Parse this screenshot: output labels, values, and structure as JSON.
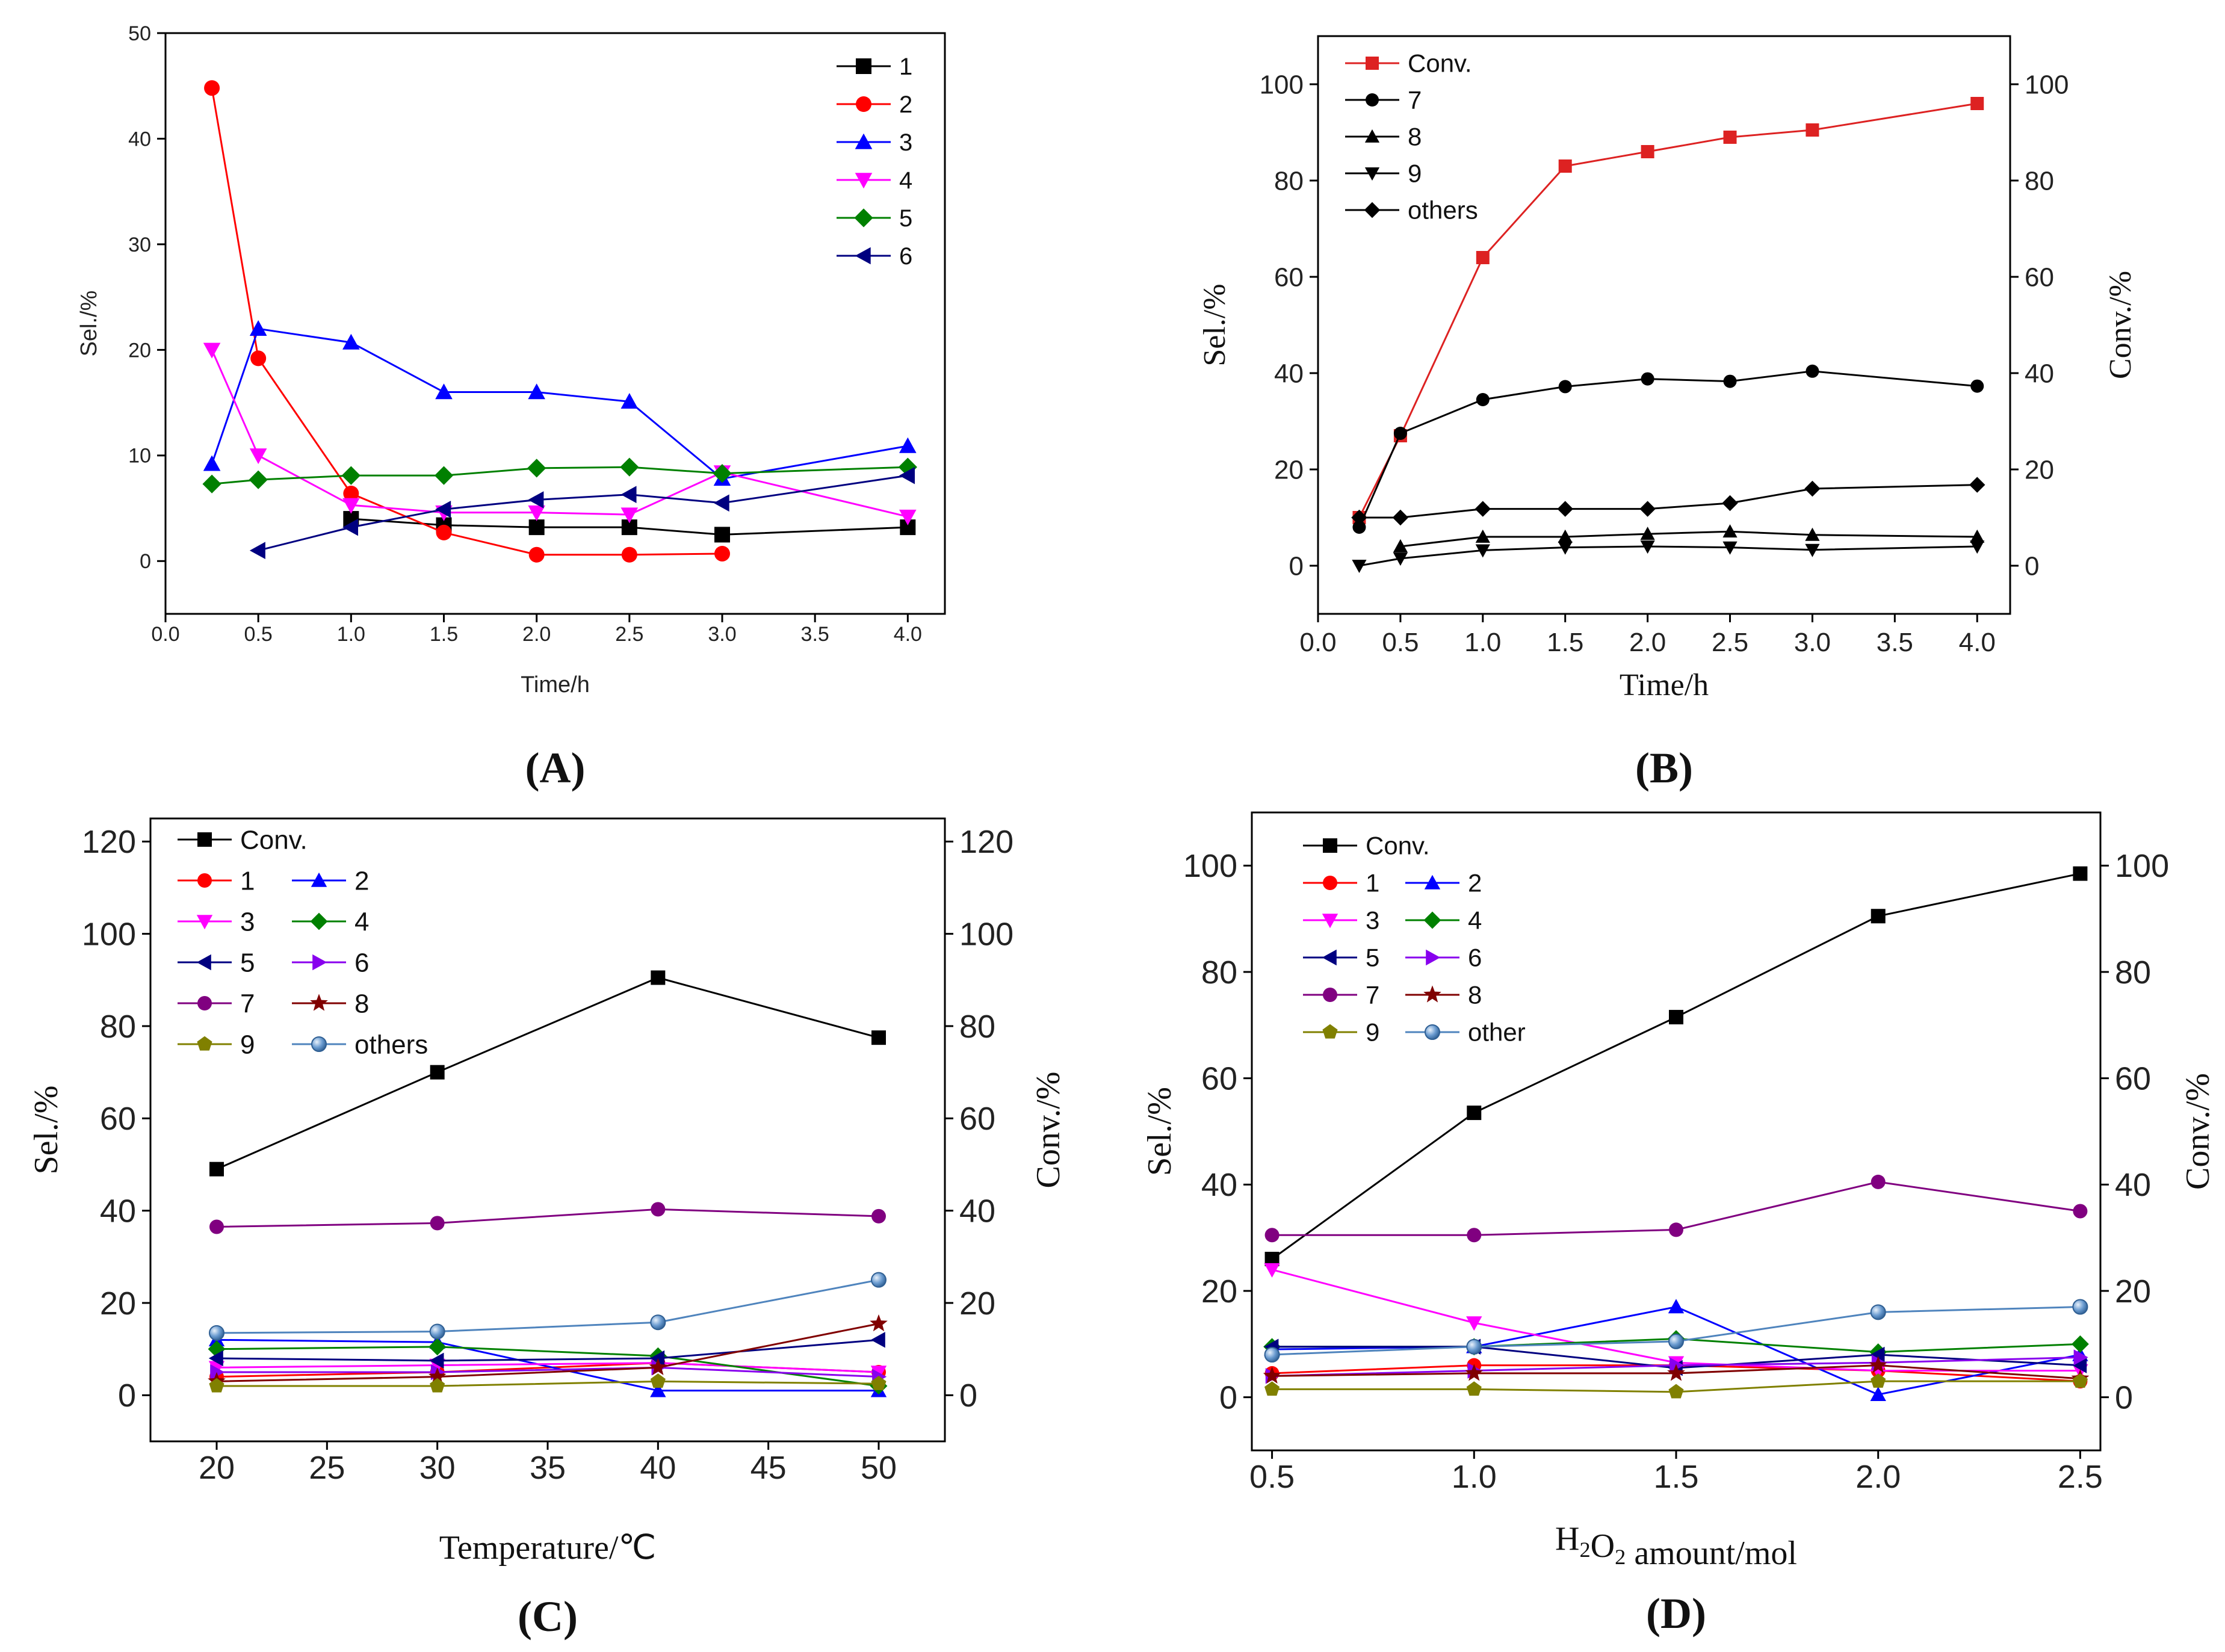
{
  "chart_data": [
    {
      "panel": "A",
      "panel_label": "(A)",
      "type": "line",
      "xlabel": "Time/h",
      "ylabel": "Sel./%",
      "xlim": [
        0,
        4.2
      ],
      "ylim": [
        -5,
        50
      ],
      "x_ticks": [
        "0.0",
        "0.5",
        "1.0",
        "1.5",
        "2.0",
        "2.5",
        "3.0",
        "3.5",
        "4.0"
      ],
      "y_ticks": [
        "0",
        "10",
        "20",
        "30",
        "40",
        "50"
      ],
      "legend_position": "top-right",
      "series": [
        {
          "name": "1",
          "color": "#000000",
          "marker": "square",
          "x": [
            1.0,
            1.5,
            2.0,
            2.5,
            3.0,
            4.0
          ],
          "values": [
            4.0,
            3.4,
            3.2,
            3.2,
            2.5,
            3.2
          ]
        },
        {
          "name": "2",
          "color": "#ff0000",
          "marker": "circle",
          "x": [
            0.25,
            0.5,
            1.0,
            1.5,
            2.0,
            2.5,
            3.0
          ],
          "values": [
            44.8,
            19.2,
            6.4,
            2.7,
            0.6,
            0.6,
            0.7
          ]
        },
        {
          "name": "3",
          "color": "#0000ff",
          "marker": "triangle-up",
          "x": [
            0.25,
            0.5,
            1.0,
            1.5,
            2.0,
            2.5,
            3.0,
            4.0
          ],
          "values": [
            9.2,
            22.0,
            20.7,
            16.0,
            16.0,
            15.1,
            7.8,
            10.9
          ]
        },
        {
          "name": "4",
          "color": "#ff00ff",
          "marker": "triangle-down",
          "x": [
            0.25,
            0.5,
            1.0,
            1.5,
            2.0,
            2.5,
            3.0,
            4.0
          ],
          "values": [
            20.0,
            10.0,
            5.3,
            4.6,
            4.6,
            4.4,
            8.4,
            4.2
          ]
        },
        {
          "name": "5",
          "color": "#008000",
          "marker": "diamond",
          "x": [
            0.25,
            0.5,
            1.0,
            1.5,
            2.0,
            2.5,
            3.0,
            4.0
          ],
          "values": [
            7.3,
            7.7,
            8.1,
            8.1,
            8.8,
            8.9,
            8.3,
            8.9
          ]
        },
        {
          "name": "6",
          "color": "#000080",
          "marker": "triangle-left",
          "x": [
            0.5,
            1.0,
            1.5,
            2.0,
            2.5,
            3.0,
            4.0
          ],
          "values": [
            1.0,
            3.2,
            4.9,
            5.8,
            6.3,
            5.5,
            8.1
          ]
        }
      ]
    },
    {
      "panel": "B",
      "panel_label": "(B)",
      "type": "line",
      "xlabel": "Time/h",
      "ylabel": "Sel./%",
      "y2label": "Conv./%",
      "xlim": [
        0,
        4.2
      ],
      "ylim": [
        -10,
        110
      ],
      "y2lim": [
        -10,
        110
      ],
      "x_ticks": [
        "0.0",
        "0.5",
        "1.0",
        "1.5",
        "2.0",
        "2.5",
        "3.0",
        "3.5",
        "4.0"
      ],
      "y_ticks": [
        "0",
        "20",
        "40",
        "60",
        "80",
        "100"
      ],
      "y2_ticks": [
        "0",
        "20",
        "40",
        "60",
        "80",
        "100"
      ],
      "legend_position": "top-left",
      "series": [
        {
          "name": "Conv.",
          "axis": "right",
          "color": "#dd2222",
          "marker": "square",
          "x": [
            0.25,
            0.5,
            1.0,
            1.5,
            2.0,
            2.5,
            3.0,
            4.0
          ],
          "values": [
            10,
            27,
            64,
            83,
            86,
            89,
            90.5,
            96
          ]
        },
        {
          "name": "7",
          "color": "#000000",
          "marker": "circle",
          "x": [
            0.25,
            0.5,
            1.0,
            1.5,
            2.0,
            2.5,
            3.0,
            4.0
          ],
          "values": [
            8,
            27.5,
            34.5,
            37.2,
            38.8,
            38.3,
            40.4,
            37.3
          ]
        },
        {
          "name": "8",
          "color": "#000000",
          "marker": "triangle-up",
          "x": [
            0.5,
            1.0,
            1.5,
            2.0,
            2.5,
            3.0,
            4.0
          ],
          "values": [
            4,
            6,
            6,
            6.6,
            7.1,
            6.4,
            6
          ]
        },
        {
          "name": "9",
          "color": "#000000",
          "marker": "triangle-down",
          "x": [
            0.25,
            0.5,
            1.0,
            1.5,
            2.0,
            2.5,
            3.0,
            4.0
          ],
          "values": [
            0,
            1.5,
            3.2,
            3.8,
            4,
            3.8,
            3.3,
            4
          ]
        },
        {
          "name": "others",
          "color": "#000000",
          "marker": "diamond",
          "x": [
            0.25,
            0.5,
            1.0,
            1.5,
            2.0,
            2.5,
            3.0,
            4.0
          ],
          "values": [
            10,
            10,
            11.8,
            11.8,
            11.8,
            13,
            16,
            16.8
          ]
        }
      ]
    },
    {
      "panel": "C",
      "panel_label": "(C)",
      "type": "line",
      "xlabel": "Temperature/℃",
      "ylabel": "Sel./%",
      "y2label": "Conv./%",
      "xlim": [
        17,
        53
      ],
      "ylim": [
        -10,
        125
      ],
      "y2lim": [
        -10,
        125
      ],
      "x_ticks": [
        "20",
        "25",
        "30",
        "35",
        "40",
        "45",
        "50"
      ],
      "y_ticks": [
        "0",
        "20",
        "40",
        "60",
        "80",
        "100",
        "120"
      ],
      "y2_ticks": [
        "0",
        "20",
        "40",
        "60",
        "80",
        "100",
        "120"
      ],
      "legend_position": "top-left",
      "series": [
        {
          "name": "Conv.",
          "axis": "right",
          "color": "#000000",
          "marker": "square",
          "x": [
            20,
            30,
            40,
            50
          ],
          "values": [
            49,
            70,
            90.5,
            77.5
          ]
        },
        {
          "name": "1",
          "color": "#ff0000",
          "marker": "circle",
          "x": [
            20,
            30,
            40,
            50
          ],
          "values": [
            4,
            5,
            7,
            5
          ]
        },
        {
          "name": "2",
          "color": "#0000ff",
          "marker": "triangle-up",
          "x": [
            20,
            30,
            40,
            50
          ],
          "values": [
            12,
            11.5,
            1,
            1
          ]
        },
        {
          "name": "3",
          "color": "#ff00ff",
          "marker": "triangle-down",
          "x": [
            20,
            30,
            40,
            50
          ],
          "values": [
            6,
            6.5,
            7,
            5
          ]
        },
        {
          "name": "4",
          "color": "#008000",
          "marker": "diamond",
          "x": [
            20,
            30,
            40,
            50
          ],
          "values": [
            10,
            10.5,
            8.5,
            2
          ]
        },
        {
          "name": "5",
          "color": "#000080",
          "marker": "triangle-left",
          "x": [
            20,
            30,
            40,
            50
          ],
          "values": [
            8,
            7.5,
            8,
            12
          ]
        },
        {
          "name": "6",
          "color": "#8800ee",
          "marker": "triangle-right",
          "x": [
            20,
            30,
            40,
            50
          ],
          "values": [
            5,
            5,
            6,
            4
          ]
        },
        {
          "name": "7",
          "color": "#800080",
          "marker": "circle",
          "x": [
            20,
            30,
            40,
            50
          ],
          "values": [
            36.5,
            37.3,
            40.3,
            38.8
          ]
        },
        {
          "name": "8",
          "color": "#800000",
          "marker": "star",
          "x": [
            20,
            30,
            40,
            50
          ],
          "values": [
            3,
            4,
            6,
            15.5
          ]
        },
        {
          "name": "9",
          "color": "#808000",
          "marker": "pentagon",
          "x": [
            20,
            30,
            40,
            50
          ],
          "values": [
            2,
            2,
            3,
            2.5
          ]
        },
        {
          "name": "others",
          "color": "#4f84bd",
          "marker": "sphere",
          "x": [
            20,
            30,
            40,
            50
          ],
          "values": [
            13.5,
            13.8,
            15.8,
            25
          ]
        }
      ]
    },
    {
      "panel": "D",
      "panel_label": "(D)",
      "type": "line",
      "xlabel_main": "H",
      "xlabel_sub1": "2",
      "xlabel_mid": "O",
      "xlabel_sub2": "2",
      "xlabel_tail": " amount/mol",
      "ylabel": "Sel./%",
      "y2label": "Conv./%",
      "xlim": [
        0.45,
        2.55
      ],
      "ylim": [
        -10,
        110
      ],
      "y2lim": [
        -10,
        110
      ],
      "x_ticks": [
        "0.5",
        "1.0",
        "1.5",
        "2.0",
        "2.5"
      ],
      "y_ticks": [
        "0",
        "20",
        "40",
        "60",
        "80",
        "100"
      ],
      "y2_ticks": [
        "0",
        "20",
        "40",
        "60",
        "80",
        "100"
      ],
      "legend_position": "top-left",
      "series": [
        {
          "name": "Conv.",
          "axis": "right",
          "color": "#000000",
          "marker": "square",
          "x": [
            0.5,
            1.0,
            1.5,
            2.0,
            2.5
          ],
          "values": [
            26,
            53.5,
            71.5,
            90.5,
            98.5
          ]
        },
        {
          "name": "1",
          "color": "#ff0000",
          "marker": "circle",
          "x": [
            0.5,
            1.0,
            1.5,
            2.0,
            2.5
          ],
          "values": [
            4.5,
            6,
            6,
            5,
            3
          ]
        },
        {
          "name": "2",
          "color": "#0000ff",
          "marker": "triangle-up",
          "x": [
            0.5,
            1.0,
            1.5,
            2.0,
            2.5
          ],
          "values": [
            9,
            9.5,
            17,
            0.5,
            8
          ]
        },
        {
          "name": "3",
          "color": "#ff00ff",
          "marker": "triangle-down",
          "x": [
            0.5,
            1.0,
            1.5,
            2.0,
            2.5
          ],
          "values": [
            24,
            14,
            6.5,
            5,
            5
          ]
        },
        {
          "name": "4",
          "color": "#008000",
          "marker": "diamond",
          "x": [
            0.5,
            1.0,
            1.5,
            2.0,
            2.5
          ],
          "values": [
            9.5,
            9.5,
            11,
            8.5,
            10
          ]
        },
        {
          "name": "5",
          "color": "#000080",
          "marker": "triangle-left",
          "x": [
            0.5,
            1.0,
            1.5,
            2.0,
            2.5
          ],
          "values": [
            9.5,
            9.5,
            5.5,
            8,
            6
          ]
        },
        {
          "name": "6",
          "color": "#8800ee",
          "marker": "triangle-right",
          "x": [
            0.5,
            1.0,
            1.5,
            2.0,
            2.5
          ],
          "values": [
            4,
            5,
            6,
            6.5,
            7.5
          ]
        },
        {
          "name": "7",
          "color": "#800080",
          "marker": "circle",
          "x": [
            0.5,
            1.0,
            1.5,
            2.0,
            2.5
          ],
          "values": [
            30.5,
            30.5,
            31.5,
            40.5,
            35
          ]
        },
        {
          "name": "8",
          "color": "#800000",
          "marker": "star",
          "x": [
            0.5,
            1.0,
            1.5,
            2.0,
            2.5
          ],
          "values": [
            4,
            4.5,
            4.5,
            6,
            3.5
          ]
        },
        {
          "name": "9",
          "color": "#808000",
          "marker": "pentagon",
          "x": [
            0.5,
            1.0,
            1.5,
            2.0,
            2.5
          ],
          "values": [
            1.5,
            1.5,
            1,
            3,
            3
          ]
        },
        {
          "name": "other",
          "color": "#4f84bd",
          "marker": "sphere",
          "x": [
            0.5,
            1.0,
            1.5,
            2.0,
            2.5
          ],
          "values": [
            8,
            9.5,
            10.5,
            16,
            17
          ]
        }
      ]
    }
  ]
}
